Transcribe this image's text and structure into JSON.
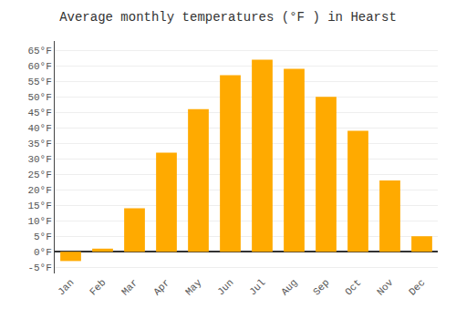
{
  "chart_data": {
    "type": "bar",
    "title": "Average monthly temperatures (°F ) in Hearst",
    "categories": [
      "Jan",
      "Feb",
      "Mar",
      "Apr",
      "May",
      "Jun",
      "Jul",
      "Aug",
      "Sep",
      "Oct",
      "Nov",
      "Dec"
    ],
    "values": [
      -3,
      1,
      14,
      32,
      46,
      57,
      62,
      59,
      50,
      39,
      23,
      5
    ],
    "color": "#FFAA00",
    "ylim": [
      -7,
      68
    ],
    "yticks": [
      {
        "value": -5,
        "label": "-5°F"
      },
      {
        "value": 0,
        "label": "0°F"
      },
      {
        "value": 5,
        "label": "5°F"
      },
      {
        "value": 10,
        "label": "10°F"
      },
      {
        "value": 15,
        "label": "15°F"
      },
      {
        "value": 20,
        "label": "20°F"
      },
      {
        "value": 25,
        "label": "25°F"
      },
      {
        "value": 30,
        "label": "30°F"
      },
      {
        "value": 35,
        "label": "35°F"
      },
      {
        "value": 40,
        "label": "40°F"
      },
      {
        "value": 45,
        "label": "45°F"
      },
      {
        "value": 50,
        "label": "50°F"
      },
      {
        "value": 55,
        "label": "55°F"
      },
      {
        "value": 60,
        "label": "60°F"
      },
      {
        "value": 65,
        "label": "65°F"
      }
    ],
    "grid": true
  }
}
